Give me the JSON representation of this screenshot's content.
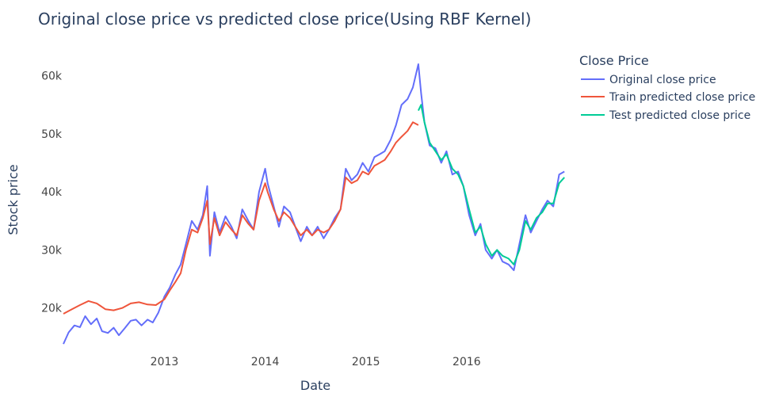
{
  "chart_data": {
    "type": "line",
    "title": "Original close price vs predicted close price(Using RBF Kernel)",
    "xlabel": "Date",
    "ylabel": "Stock price",
    "x_ticks": [
      "2013",
      "2014",
      "2015",
      "2016"
    ],
    "y_ticks": [
      "20k",
      "30k",
      "40k",
      "50k",
      "60k"
    ],
    "xlim": [
      "2012-01-01",
      "2016-12-31"
    ],
    "ylim": [
      13000,
      63500
    ],
    "grid": false,
    "legend": {
      "title": "Close Price",
      "position": "top-right"
    },
    "series": [
      {
        "name": "Original close price",
        "color": "#636efa",
        "x": [
          "2012-01-01",
          "2012-01-20",
          "2012-02-10",
          "2012-03-01",
          "2012-03-20",
          "2012-04-10",
          "2012-05-01",
          "2012-05-20",
          "2012-06-10",
          "2012-07-01",
          "2012-07-20",
          "2012-08-10",
          "2012-09-01",
          "2012-09-20",
          "2012-10-10",
          "2012-11-01",
          "2012-11-20",
          "2012-12-10",
          "2013-01-01",
          "2013-01-20",
          "2013-02-10",
          "2013-03-01",
          "2013-03-20",
          "2013-04-10",
          "2013-05-01",
          "2013-05-20",
          "2013-06-05",
          "2013-06-15",
          "2013-07-01",
          "2013-07-20",
          "2013-08-10",
          "2013-09-01",
          "2013-09-20",
          "2013-10-10",
          "2013-11-01",
          "2013-11-20",
          "2013-12-10",
          "2014-01-01",
          "2014-01-10",
          "2014-02-01",
          "2014-02-20",
          "2014-03-10",
          "2014-04-01",
          "2014-04-20",
          "2014-05-10",
          "2014-06-01",
          "2014-06-20",
          "2014-07-10",
          "2014-08-01",
          "2014-08-20",
          "2014-09-10",
          "2014-10-01",
          "2014-10-20",
          "2014-11-10",
          "2014-12-01",
          "2014-12-20",
          "2015-01-10",
          "2015-02-01",
          "2015-02-20",
          "2015-03-10",
          "2015-04-01",
          "2015-04-20",
          "2015-05-10",
          "2015-06-01",
          "2015-06-20",
          "2015-07-10",
          "2015-07-20",
          "2015-08-01",
          "2015-08-20",
          "2015-09-10",
          "2015-10-01",
          "2015-10-20",
          "2015-11-10",
          "2015-12-01",
          "2015-12-20",
          "2016-01-10",
          "2016-02-01",
          "2016-02-20",
          "2016-03-10",
          "2016-04-01",
          "2016-04-20",
          "2016-05-10",
          "2016-06-01",
          "2016-06-20",
          "2016-07-10",
          "2016-08-01",
          "2016-08-20",
          "2016-09-10",
          "2016-10-01",
          "2016-10-20",
          "2016-11-10",
          "2016-12-01",
          "2016-12-20"
        ],
        "y": [
          13800,
          15800,
          17000,
          16700,
          18600,
          17200,
          18200,
          16000,
          15700,
          16600,
          15300,
          16500,
          17800,
          18000,
          17000,
          18000,
          17500,
          19200,
          22000,
          23500,
          25800,
          27500,
          31000,
          35000,
          33500,
          36000,
          41000,
          29000,
          36500,
          33000,
          35800,
          34000,
          32000,
          37000,
          35000,
          33500,
          40000,
          44000,
          41500,
          37500,
          34000,
          37500,
          36500,
          34000,
          31500,
          34000,
          32500,
          34000,
          32000,
          33500,
          35500,
          37000,
          44000,
          42000,
          43000,
          45000,
          43500,
          46000,
          46500,
          47000,
          49000,
          51500,
          55000,
          56000,
          58000,
          62000,
          57000,
          52000,
          48000,
          47500,
          45000,
          47000,
          43000,
          43500,
          41000,
          36000,
          32500,
          34500,
          30000,
          28500,
          30000,
          28000,
          27500,
          26500,
          31000,
          36000,
          33000,
          35000,
          37000,
          38500,
          37500,
          43000,
          43500
        ]
      },
      {
        "name": "Train predicted close price",
        "color": "#ef553b",
        "x": [
          "2012-01-01",
          "2012-02-01",
          "2012-03-01",
          "2012-04-01",
          "2012-05-01",
          "2012-06-01",
          "2012-07-01",
          "2012-08-01",
          "2012-09-01",
          "2012-10-01",
          "2012-11-01",
          "2012-12-01",
          "2013-01-01",
          "2013-01-20",
          "2013-02-10",
          "2013-03-01",
          "2013-03-20",
          "2013-04-10",
          "2013-05-01",
          "2013-05-20",
          "2013-06-05",
          "2013-06-15",
          "2013-07-01",
          "2013-07-20",
          "2013-08-10",
          "2013-09-01",
          "2013-09-20",
          "2013-10-10",
          "2013-11-01",
          "2013-11-20",
          "2013-12-10",
          "2014-01-01",
          "2014-01-10",
          "2014-02-01",
          "2014-02-20",
          "2014-03-10",
          "2014-04-01",
          "2014-04-20",
          "2014-05-10",
          "2014-06-01",
          "2014-06-20",
          "2014-07-10",
          "2014-08-01",
          "2014-08-20",
          "2014-09-10",
          "2014-10-01",
          "2014-10-20",
          "2014-11-10",
          "2014-12-01",
          "2014-12-20",
          "2015-01-10",
          "2015-02-01",
          "2015-02-20",
          "2015-03-10",
          "2015-04-01",
          "2015-04-20",
          "2015-05-10",
          "2015-06-01",
          "2015-06-20",
          "2015-07-10"
        ],
        "y": [
          19000,
          19800,
          20500,
          21200,
          20800,
          19800,
          19600,
          20000,
          20800,
          21000,
          20600,
          20500,
          21500,
          23000,
          24500,
          26000,
          30000,
          33500,
          33000,
          35500,
          38500,
          31000,
          35500,
          32500,
          34800,
          33500,
          32500,
          36000,
          34500,
          33500,
          38500,
          41500,
          40000,
          37000,
          35000,
          36500,
          35500,
          34000,
          32500,
          33500,
          32500,
          33500,
          33000,
          33500,
          35000,
          37000,
          42500,
          41500,
          42000,
          43500,
          43000,
          44500,
          45000,
          45500,
          47000,
          48500,
          49500,
          50500,
          52000,
          51500
        ]
      },
      {
        "name": "Test predicted close price",
        "color": "#00cc96",
        "x": [
          "2015-07-10",
          "2015-07-20",
          "2015-08-01",
          "2015-08-20",
          "2015-09-10",
          "2015-10-01",
          "2015-10-20",
          "2015-11-10",
          "2015-12-01",
          "2015-12-20",
          "2016-01-10",
          "2016-02-01",
          "2016-02-20",
          "2016-03-10",
          "2016-04-01",
          "2016-04-20",
          "2016-05-10",
          "2016-06-01",
          "2016-06-20",
          "2016-07-10",
          "2016-08-01",
          "2016-08-20",
          "2016-09-10",
          "2016-10-01",
          "2016-10-20",
          "2016-11-10",
          "2016-12-01",
          "2016-12-20"
        ],
        "y": [
          54000,
          55000,
          52000,
          48500,
          47000,
          45500,
          46500,
          44000,
          43000,
          41000,
          37000,
          33000,
          34000,
          31000,
          29000,
          30000,
          29000,
          28500,
          27500,
          30000,
          35000,
          33500,
          35500,
          36500,
          38000,
          38000,
          41500,
          42500
        ]
      }
    ]
  }
}
